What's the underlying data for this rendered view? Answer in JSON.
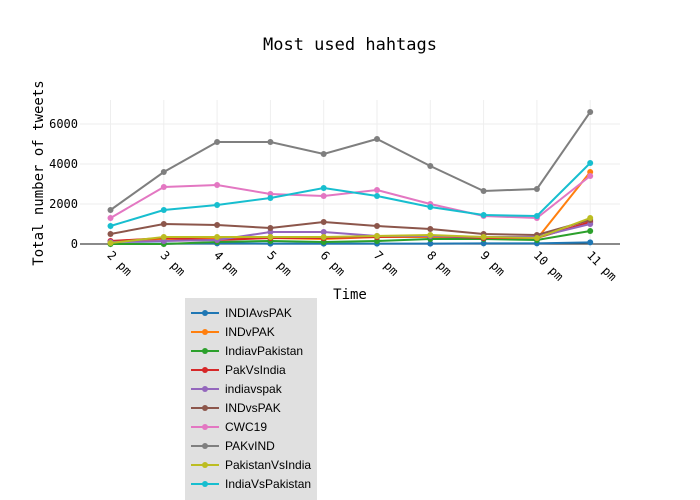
{
  "chart_data": {
    "type": "line",
    "title": "Most used hahtags",
    "xlabel": "Time",
    "ylabel": "Total number of tweets",
    "categories": [
      "2 pm",
      "3 pm",
      "4 pm",
      "5 pm",
      "6 pm",
      "7 pm",
      "8 pm",
      "9 pm",
      "10 pm",
      "11 pm"
    ],
    "ylim": [
      -200,
      7200
    ],
    "yticks": [
      0,
      2000,
      4000,
      6000
    ],
    "yticklabels": [
      "0",
      "2000",
      "4000",
      "6000"
    ],
    "grid": true,
    "legend_position": "bottom-left",
    "series": [
      {
        "name": "INDIAvsPAK",
        "color": "#1f77b4",
        "values": [
          10,
          20,
          30,
          20,
          20,
          20,
          20,
          30,
          30,
          80
        ]
      },
      {
        "name": "INDvPAK",
        "color": "#ff7f0e",
        "values": [
          100,
          250,
          250,
          300,
          250,
          350,
          350,
          300,
          250,
          3600
        ]
      },
      {
        "name": "IndiavPakistan",
        "color": "#2ca02c",
        "values": [
          0,
          0,
          100,
          150,
          100,
          150,
          250,
          250,
          200,
          650
        ]
      },
      {
        "name": "PakVsIndia",
        "color": "#d62728",
        "values": [
          150,
          300,
          200,
          300,
          300,
          350,
          400,
          300,
          300,
          1100
        ]
      },
      {
        "name": "indiavspak",
        "color": "#9467bd",
        "values": [
          100,
          150,
          200,
          600,
          600,
          400,
          400,
          350,
          350,
          1000
        ]
      },
      {
        "name": "INDvsPAK",
        "color": "#8c564b",
        "values": [
          500,
          1000,
          950,
          800,
          1100,
          900,
          750,
          500,
          450,
          1200
        ]
      },
      {
        "name": "CWC19",
        "color": "#e377c2",
        "values": [
          1300,
          2850,
          2950,
          2500,
          2400,
          2700,
          2000,
          1400,
          1300,
          3400
        ]
      },
      {
        "name": "PAKvIND",
        "color": "#7f7f7f",
        "values": [
          1700,
          3600,
          5100,
          5100,
          4500,
          5250,
          3900,
          2650,
          2750,
          6600
        ]
      },
      {
        "name": "PakistanVsIndia",
        "color": "#bcbd22",
        "values": [
          50,
          350,
          350,
          350,
          350,
          400,
          450,
          350,
          300,
          1300
        ]
      },
      {
        "name": "IndiaVsPakistan",
        "color": "#17becf",
        "values": [
          900,
          1700,
          1950,
          2300,
          2800,
          2400,
          1850,
          1450,
          1400,
          4050
        ]
      }
    ]
  }
}
